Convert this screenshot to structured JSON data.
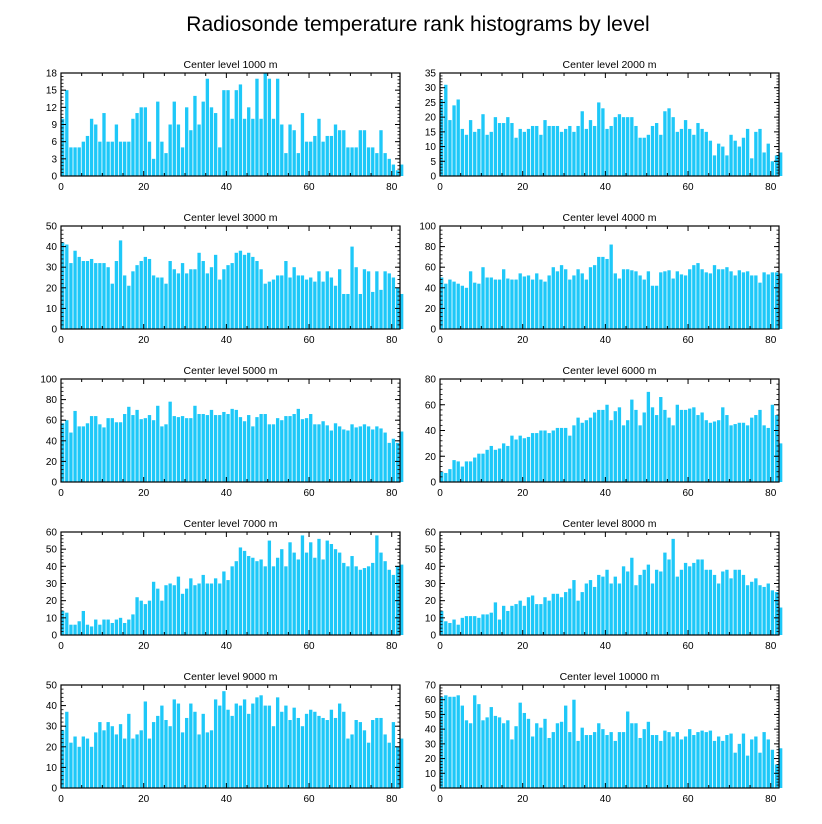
{
  "title": "Radiosonde temperature rank histograms by level",
  "colors": {
    "bar": "#1ec8f8",
    "axis": "#000000",
    "background": "#ffffff"
  },
  "chart_data": [
    {
      "type": "bar",
      "title": "Center level 1000 m",
      "xlim": [
        0,
        82
      ],
      "ylim": [
        0,
        18
      ],
      "xticks": [
        0,
        20,
        40,
        60,
        80
      ],
      "yticks": [
        0,
        3,
        6,
        9,
        12,
        15,
        18
      ],
      "values": [
        10,
        15,
        5,
        5,
        5,
        6,
        7,
        10,
        9,
        6,
        11,
        6,
        6,
        9,
        6,
        6,
        6,
        10,
        11,
        12,
        12,
        6,
        3,
        13,
        6,
        4,
        9,
        13,
        9,
        5,
        12,
        8,
        14,
        9,
        13,
        17,
        12,
        11,
        5,
        15,
        15,
        10,
        15,
        16,
        10,
        12,
        10,
        17,
        10,
        18,
        17,
        10,
        17,
        9,
        4,
        9,
        8,
        4,
        11,
        6,
        6,
        7,
        10,
        6,
        7,
        7,
        9,
        8,
        8,
        5,
        5,
        5,
        8,
        8,
        5,
        5,
        4,
        8,
        4,
        3,
        2,
        1,
        2
      ]
    },
    {
      "type": "bar",
      "title": "Center level 2000 m",
      "xlim": [
        0,
        82
      ],
      "ylim": [
        0,
        35
      ],
      "xticks": [
        0,
        20,
        40,
        60,
        80
      ],
      "yticks": [
        0,
        5,
        10,
        15,
        20,
        25,
        30,
        35
      ],
      "values": [
        26,
        31,
        19,
        24,
        26,
        16,
        14,
        19,
        15,
        16,
        21,
        14,
        15,
        20,
        18,
        18,
        20,
        18,
        13,
        16,
        15,
        16,
        17,
        17,
        14,
        19,
        17,
        17,
        17,
        15,
        16,
        17,
        15,
        17,
        22,
        16,
        19,
        17,
        25,
        23,
        16,
        17,
        20,
        21,
        20,
        20,
        20,
        17,
        13,
        13,
        14,
        17,
        18,
        14,
        22,
        23,
        20,
        15,
        16,
        19,
        16,
        14,
        18,
        16,
        15,
        12,
        7,
        11,
        10,
        7,
        14,
        12,
        10,
        13,
        16,
        6,
        15,
        16,
        8,
        11,
        5,
        7,
        8
      ]
    },
    {
      "type": "bar",
      "title": "Center level 3000 m",
      "xlim": [
        0,
        82
      ],
      "ylim": [
        0,
        50
      ],
      "xticks": [
        0,
        20,
        40,
        60,
        80
      ],
      "yticks": [
        0,
        10,
        20,
        30,
        40,
        50
      ],
      "values": [
        42,
        41,
        32,
        38,
        35,
        33,
        33,
        34,
        32,
        32,
        32,
        30,
        22,
        33,
        43,
        26,
        21,
        28,
        31,
        33,
        35,
        34,
        26,
        25,
        25,
        22,
        33,
        29,
        27,
        32,
        27,
        29,
        29,
        37,
        33,
        27,
        30,
        36,
        24,
        29,
        31,
        32,
        37,
        38,
        36,
        37,
        35,
        33,
        29,
        22,
        23,
        24,
        26,
        26,
        33,
        25,
        30,
        26,
        26,
        24,
        25,
        23,
        28,
        23,
        28,
        25,
        21,
        29,
        17,
        17,
        40,
        30,
        17,
        29,
        28,
        18,
        28,
        19,
        28,
        27,
        25,
        20,
        17
      ]
    },
    {
      "type": "bar",
      "title": "Center level 4000 m",
      "xlim": [
        0,
        82
      ],
      "ylim": [
        0,
        100
      ],
      "xticks": [
        0,
        20,
        40,
        60,
        80
      ],
      "yticks": [
        0,
        20,
        40,
        60,
        80,
        100
      ],
      "values": [
        50,
        44,
        48,
        46,
        44,
        42,
        40,
        56,
        45,
        44,
        60,
        50,
        50,
        48,
        48,
        58,
        49,
        48,
        48,
        54,
        51,
        52,
        48,
        54,
        48,
        46,
        52,
        60,
        56,
        62,
        58,
        48,
        52,
        58,
        54,
        48,
        60,
        62,
        70,
        70,
        68,
        82,
        54,
        49,
        58,
        58,
        57,
        56,
        52,
        48,
        56,
        42,
        42,
        55,
        56,
        57,
        49,
        56,
        53,
        52,
        58,
        62,
        64,
        58,
        55,
        54,
        62,
        58,
        58,
        60,
        56,
        52,
        57,
        55,
        56,
        52,
        52,
        45,
        55,
        53,
        55,
        55,
        54
      ]
    },
    {
      "type": "bar",
      "title": "Center level 5000 m",
      "xlim": [
        0,
        82
      ],
      "ylim": [
        0,
        100
      ],
      "xticks": [
        0,
        20,
        40,
        60,
        80
      ],
      "yticks": [
        0,
        20,
        40,
        60,
        80,
        100
      ],
      "values": [
        57,
        60,
        48,
        69,
        54,
        54,
        57,
        64,
        64,
        56,
        53,
        62,
        62,
        58,
        58,
        66,
        73,
        65,
        70,
        61,
        62,
        65,
        60,
        74,
        54,
        56,
        78,
        64,
        63,
        64,
        62,
        62,
        74,
        66,
        66,
        65,
        70,
        65,
        65,
        68,
        66,
        71,
        70,
        63,
        59,
        65,
        54,
        63,
        66,
        66,
        56,
        56,
        62,
        60,
        64,
        64,
        66,
        71,
        61,
        62,
        66,
        56,
        56,
        59,
        55,
        50,
        57,
        54,
        51,
        50,
        56,
        53,
        54,
        56,
        54,
        51,
        54,
        52,
        48,
        38,
        42,
        38,
        49
      ]
    },
    {
      "type": "bar",
      "title": "Center level 6000 m",
      "xlim": [
        0,
        82
      ],
      "ylim": [
        0,
        80
      ],
      "xticks": [
        0,
        20,
        40,
        60,
        80
      ],
      "yticks": [
        0,
        20,
        40,
        60,
        80
      ],
      "values": [
        8,
        7,
        10,
        17,
        16,
        12,
        16,
        16,
        19,
        22,
        22,
        25,
        28,
        25,
        26,
        30,
        28,
        36,
        33,
        36,
        34,
        35,
        38,
        38,
        40,
        40,
        38,
        40,
        42,
        42,
        42,
        36,
        44,
        50,
        46,
        48,
        50,
        54,
        56,
        56,
        60,
        48,
        55,
        58,
        44,
        48,
        64,
        56,
        44,
        54,
        70,
        58,
        52,
        66,
        56,
        50,
        44,
        60,
        56,
        56,
        57,
        58,
        52,
        54,
        48,
        46,
        47,
        48,
        58,
        52,
        44,
        45,
        46,
        46,
        44,
        50,
        52,
        56,
        44,
        42,
        60,
        52,
        30
      ]
    },
    {
      "type": "bar",
      "title": "Center level 7000 m",
      "xlim": [
        0,
        82
      ],
      "ylim": [
        0,
        60
      ],
      "xticks": [
        0,
        20,
        40,
        60,
        80
      ],
      "yticks": [
        0,
        10,
        20,
        30,
        40,
        50,
        60
      ],
      "values": [
        14,
        13,
        6,
        6,
        8,
        14,
        6,
        5,
        9,
        6,
        9,
        9,
        7,
        9,
        10,
        7,
        9,
        12,
        22,
        20,
        18,
        20,
        31,
        27,
        20,
        29,
        30,
        29,
        34,
        24,
        27,
        33,
        29,
        30,
        35,
        30,
        30,
        33,
        30,
        37,
        32,
        40,
        43,
        51,
        49,
        46,
        45,
        43,
        44,
        40,
        55,
        40,
        45,
        50,
        40,
        54,
        48,
        44,
        58,
        48,
        54,
        45,
        56,
        44,
        55,
        53,
        50,
        48,
        42,
        40,
        46,
        40,
        38,
        39,
        40,
        42,
        58,
        48,
        43,
        38,
        35,
        40,
        41
      ]
    },
    {
      "type": "bar",
      "title": "Center level 8000 m",
      "xlim": [
        0,
        82
      ],
      "ylim": [
        0,
        60
      ],
      "xticks": [
        0,
        20,
        40,
        60,
        80
      ],
      "yticks": [
        0,
        10,
        20,
        30,
        40,
        50,
        60
      ],
      "values": [
        14,
        8,
        7,
        9,
        6,
        10,
        11,
        11,
        11,
        10,
        12,
        12,
        13,
        19,
        9,
        17,
        14,
        17,
        18,
        20,
        17,
        22,
        23,
        18,
        18,
        22,
        20,
        24,
        24,
        22,
        25,
        27,
        32,
        20,
        25,
        30,
        32,
        28,
        35,
        34,
        38,
        30,
        34,
        30,
        40,
        37,
        45,
        29,
        35,
        38,
        41,
        30,
        38,
        37,
        48,
        44,
        56,
        34,
        38,
        42,
        40,
        42,
        44,
        44,
        38,
        38,
        35,
        30,
        37,
        38,
        33,
        38,
        38,
        35,
        29,
        31,
        33,
        29,
        28,
        30,
        26,
        25,
        16
      ]
    },
    {
      "type": "bar",
      "title": "Center level 9000 m",
      "xlim": [
        0,
        82
      ],
      "ylim": [
        0,
        50
      ],
      "xticks": [
        0,
        20,
        40,
        60,
        80
      ],
      "yticks": [
        0,
        10,
        20,
        30,
        40,
        50
      ],
      "values": [
        28,
        37,
        22,
        25,
        20,
        25,
        24,
        20,
        27,
        32,
        28,
        32,
        30,
        26,
        31,
        24,
        36,
        24,
        26,
        28,
        42,
        24,
        32,
        35,
        40,
        33,
        30,
        43,
        41,
        27,
        34,
        41,
        37,
        26,
        36,
        27,
        28,
        43,
        40,
        47,
        38,
        35,
        41,
        40,
        43,
        36,
        41,
        44,
        45,
        40,
        40,
        30,
        44,
        37,
        40,
        33,
        39,
        34,
        30,
        36,
        38,
        37,
        35,
        34,
        33,
        38,
        34,
        41,
        37,
        24,
        26,
        33,
        32,
        28,
        22,
        33,
        34,
        34,
        26,
        22,
        32,
        20,
        24
      ]
    },
    {
      "type": "bar",
      "title": "Center level 10000 m",
      "xlim": [
        0,
        82
      ],
      "ylim": [
        0,
        70
      ],
      "xticks": [
        0,
        20,
        40,
        60,
        80
      ],
      "yticks": [
        0,
        10,
        20,
        30,
        40,
        50,
        60,
        70
      ],
      "values": [
        62,
        63,
        62,
        62,
        63,
        56,
        46,
        44,
        63,
        57,
        46,
        48,
        55,
        49,
        48,
        44,
        46,
        33,
        42,
        58,
        51,
        47,
        35,
        44,
        41,
        47,
        34,
        38,
        44,
        45,
        56,
        38,
        60,
        32,
        41,
        36,
        36,
        38,
        44,
        40,
        36,
        38,
        32,
        38,
        38,
        52,
        44,
        44,
        34,
        40,
        45,
        36,
        36,
        32,
        39,
        38,
        35,
        38,
        33,
        35,
        40,
        36,
        38,
        39,
        38,
        39,
        32,
        35,
        32,
        36,
        37,
        24,
        30,
        37,
        22,
        33,
        35,
        24,
        38,
        33,
        26,
        16,
        27
      ]
    }
  ]
}
